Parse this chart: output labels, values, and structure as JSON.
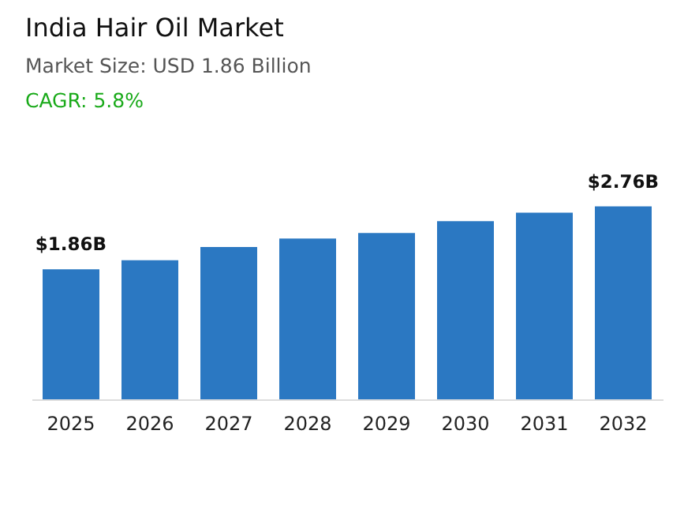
{
  "chart_data": {
    "type": "bar",
    "title": "India Hair Oil Market",
    "subtitle": "Market Size: USD 1.86 Billion",
    "annotations": [
      "CAGR: 5.8%"
    ],
    "categories": [
      "2025",
      "2026",
      "2027",
      "2028",
      "2029",
      "2030",
      "2031",
      "2032"
    ],
    "values": [
      1.86,
      1.99,
      2.18,
      2.3,
      2.38,
      2.55,
      2.67,
      2.76
    ],
    "value_labels": [
      "$1.86B",
      null,
      null,
      null,
      null,
      null,
      null,
      "$2.76B"
    ],
    "color": "#2b78c2",
    "tick_labels": "x",
    "grid": false
  }
}
